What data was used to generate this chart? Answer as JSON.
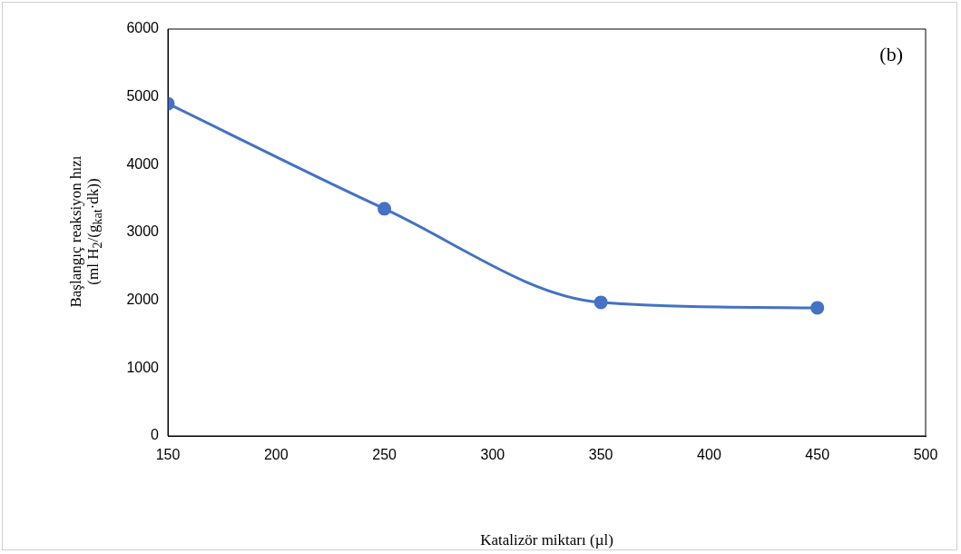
{
  "chart_data": {
    "type": "line",
    "xlabel": "Katalizör miktarı (µl)",
    "ylabel": "Başlangıç reaksiyon hızı\n(ml H$_{2}$/(g$_{kat}$·dk))",
    "annotations": [
      "(b)"
    ],
    "x": [
      150,
      250,
      350,
      450
    ],
    "series": [
      {
        "color": "#4472c4",
        "values": [
          4900,
          3350,
          1970,
          1890
        ]
      }
    ],
    "xlim": [
      150,
      500
    ],
    "xticks": [
      150,
      200,
      250,
      300,
      350,
      400,
      450,
      500
    ],
    "ylim": [
      0,
      6000
    ],
    "yticks": [
      0,
      1000,
      2000,
      3000,
      4000,
      5000,
      6000
    ],
    "grid": false,
    "legend": false,
    "marker": "circle",
    "line_style": "solid"
  }
}
